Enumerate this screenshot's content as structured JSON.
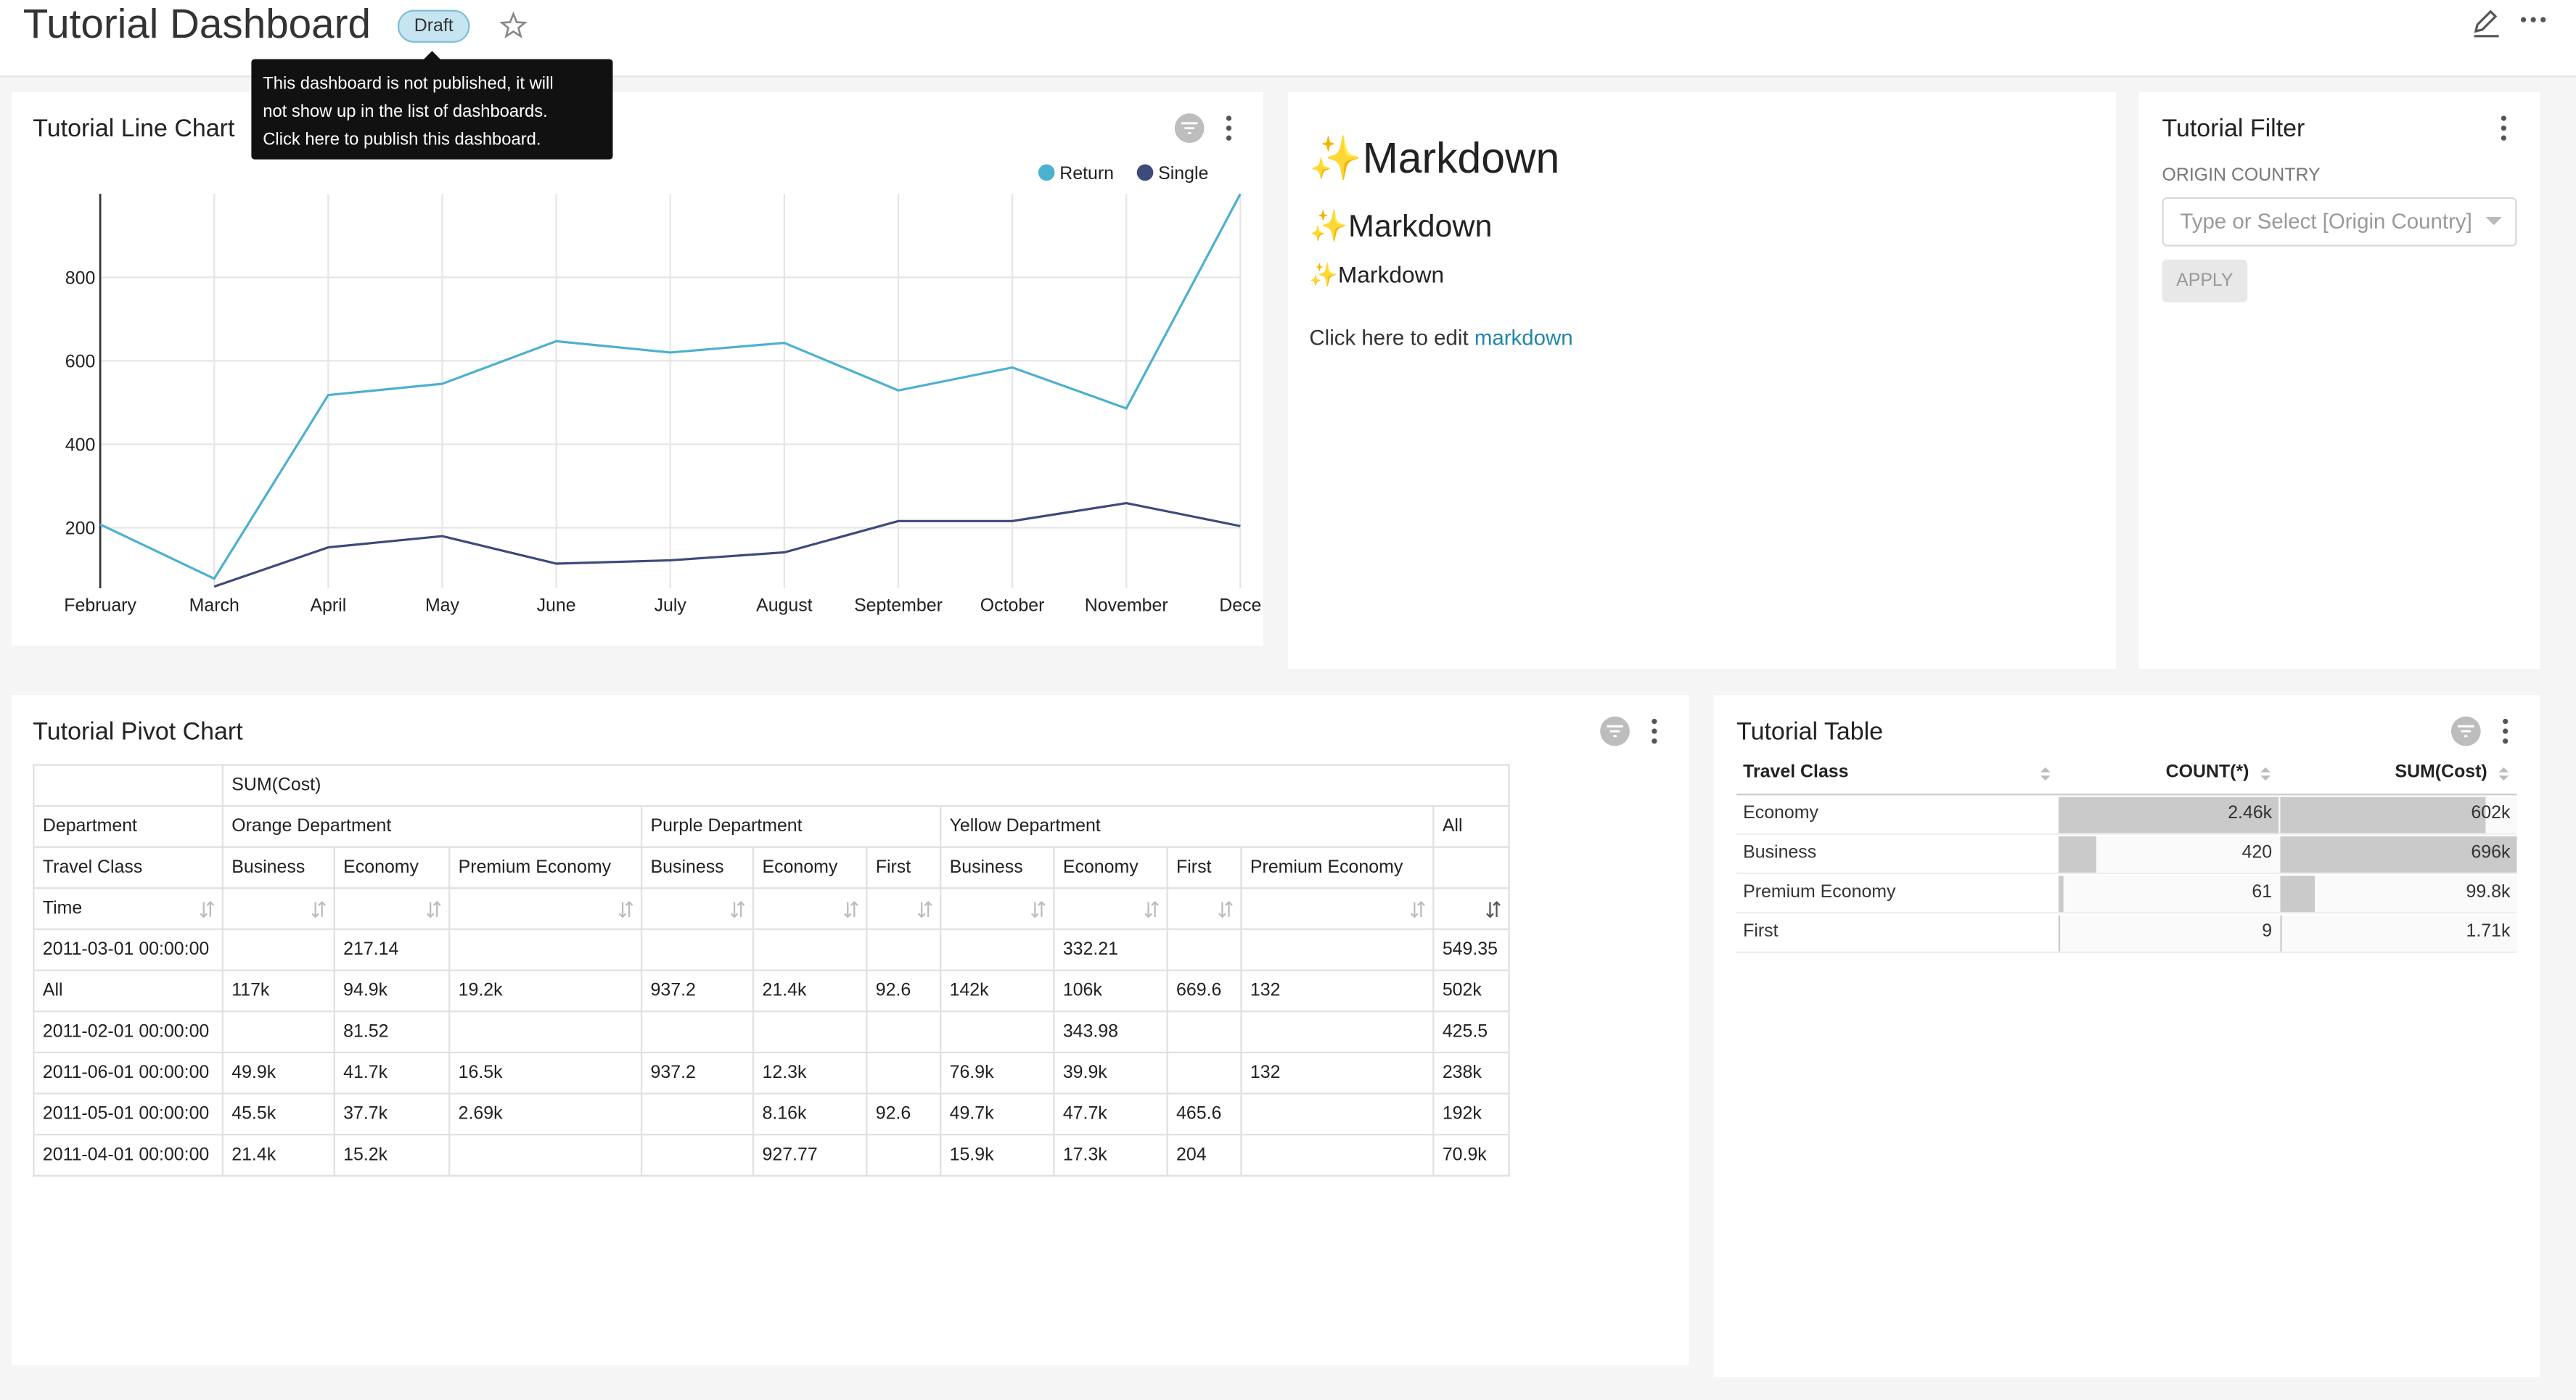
{
  "header": {
    "title": "Tutorial Dashboard",
    "badge": "Draft",
    "tooltip_lines": [
      "This dashboard is not published, it will",
      "not show up in the list of dashboards.",
      "Click here to publish this dashboard."
    ]
  },
  "line_chart": {
    "type": "line",
    "title": "Tutorial Line Chart",
    "categories": [
      "February",
      "March",
      "April",
      "May",
      "June",
      "July",
      "August",
      "September",
      "October",
      "November",
      "Dece"
    ],
    "series": [
      {
        "name": "Return",
        "color": "#4cb0cf",
        "values": [
          208,
          78,
          518,
          545,
          647,
          620,
          643,
          529,
          584,
          486,
          1000
        ]
      },
      {
        "name": "Single",
        "color": "#3d4a7a",
        "values": [
          null,
          59,
          153,
          180,
          114,
          122,
          141,
          216,
          216,
          259,
          204
        ]
      }
    ],
    "ylim": [
      55,
      1000
    ],
    "yticks": [
      200,
      400,
      600,
      800
    ],
    "grid": true
  },
  "markdown": {
    "h1": "✨Markdown",
    "h2": "✨Markdown",
    "h3": "✨Markdown",
    "text": "Click here to edit ",
    "link": "markdown"
  },
  "filter": {
    "title": "Tutorial Filter",
    "label": "ORIGIN COUNTRY",
    "placeholder": "Type or Select [Origin Country]",
    "button": "APPLY"
  },
  "pivot": {
    "title": "Tutorial Pivot Chart",
    "metric": "SUM(Cost)",
    "dimension_labels": [
      "Department",
      "Travel Class",
      "Time"
    ],
    "departments": [
      {
        "name": "Orange Department",
        "classes": [
          "Business",
          "Economy",
          "Premium Economy"
        ]
      },
      {
        "name": "Purple Department",
        "classes": [
          "Business",
          "Economy",
          "First"
        ]
      },
      {
        "name": "Yellow Department",
        "classes": [
          "Business",
          "Economy",
          "First",
          "Premium Economy"
        ]
      }
    ],
    "total_label": "All",
    "rows": [
      {
        "label": "2011-03-01 00:00:00",
        "cells": [
          null,
          "217.14",
          null,
          null,
          null,
          null,
          null,
          "332.21",
          null,
          null,
          "549.35"
        ]
      },
      {
        "label": "All",
        "cells": [
          "117k",
          "94.9k",
          "19.2k",
          "937.2",
          "21.4k",
          "92.6",
          "142k",
          "106k",
          "669.6",
          "132",
          "502k"
        ]
      },
      {
        "label": "2011-02-01 00:00:00",
        "cells": [
          null,
          "81.52",
          null,
          null,
          null,
          null,
          null,
          "343.98",
          null,
          null,
          "425.5"
        ]
      },
      {
        "label": "2011-06-01 00:00:00",
        "cells": [
          "49.9k",
          "41.7k",
          "16.5k",
          "937.2",
          "12.3k",
          null,
          "76.9k",
          "39.9k",
          null,
          "132",
          "238k"
        ]
      },
      {
        "label": "2011-05-01 00:00:00",
        "cells": [
          "45.5k",
          "37.7k",
          "2.69k",
          null,
          "8.16k",
          "92.6",
          "49.7k",
          "47.7k",
          "465.6",
          null,
          "192k"
        ]
      },
      {
        "label": "2011-04-01 00:00:00",
        "cells": [
          "21.4k",
          "15.2k",
          null,
          null,
          "927.77",
          null,
          "15.9k",
          "17.3k",
          "204",
          null,
          "70.9k"
        ]
      }
    ]
  },
  "table": {
    "title": "Tutorial Table",
    "columns": [
      "Travel Class",
      "COUNT(*)",
      "SUM(Cost)"
    ],
    "rows": [
      {
        "travel_class": "Economy",
        "count": {
          "value": 2460,
          "label": "2.46k"
        },
        "sum": {
          "value": 602000,
          "label": "602k"
        }
      },
      {
        "travel_class": "Business",
        "count": {
          "value": 420,
          "label": "420"
        },
        "sum": {
          "value": 696000,
          "label": "696k"
        }
      },
      {
        "travel_class": "Premium Economy",
        "count": {
          "value": 61,
          "label": "61"
        },
        "sum": {
          "value": 99800,
          "label": "99.8k"
        }
      },
      {
        "travel_class": "First",
        "count": {
          "value": 9,
          "label": "9"
        },
        "sum": {
          "value": 1710,
          "label": "1.71k"
        }
      }
    ]
  }
}
